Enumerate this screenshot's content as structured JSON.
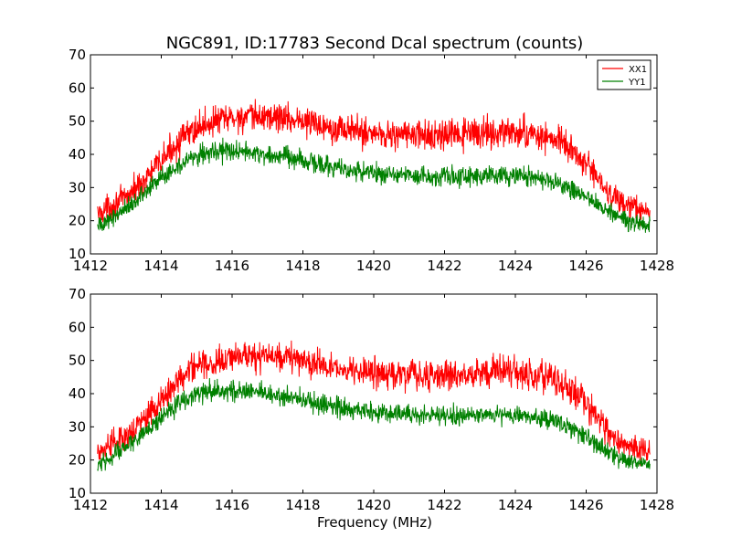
{
  "figure": {
    "title": "NGC891, ID:17783 Second Dcal spectrum (counts)",
    "xlabel": "Frequency (MHz)"
  },
  "chart_data": [
    {
      "type": "line",
      "title": "NGC891, ID:17783 Second Dcal spectrum (counts)",
      "xlabel": "",
      "ylabel": "",
      "xlim": [
        1412,
        1428
      ],
      "ylim": [
        10,
        70
      ],
      "xticks": [
        1412,
        1414,
        1416,
        1418,
        1420,
        1422,
        1424,
        1426,
        1428
      ],
      "yticks": [
        10,
        20,
        30,
        40,
        50,
        60,
        70
      ],
      "xtick_labels": [
        "1412",
        "1414",
        "1416",
        "1418",
        "1420",
        "1422",
        "1424",
        "1426",
        "1428"
      ],
      "ytick_labels": [
        "10",
        "20",
        "30",
        "40",
        "50",
        "60",
        "70"
      ],
      "grid": false,
      "legend": {
        "placement": "top-right",
        "entries": [
          "XX1",
          "YY1"
        ]
      },
      "series": [
        {
          "name": "XX1",
          "color": "#ff0000",
          "noise_amplitude": 3.5,
          "x": [
            1412.2,
            1412.5,
            1413.0,
            1413.5,
            1414.0,
            1414.5,
            1415.0,
            1415.5,
            1416.0,
            1416.5,
            1417.0,
            1417.5,
            1418.0,
            1418.5,
            1419.0,
            1419.5,
            1420.0,
            1420.5,
            1421.0,
            1421.5,
            1422.0,
            1422.5,
            1423.0,
            1423.5,
            1424.0,
            1424.5,
            1425.0,
            1425.5,
            1426.0,
            1426.5,
            1427.0,
            1427.5,
            1427.8
          ],
          "y": [
            22,
            24,
            27,
            32,
            38,
            44,
            48,
            50,
            51,
            51,
            51.5,
            51,
            50,
            49,
            48,
            47,
            46.5,
            46,
            46,
            45.5,
            45.5,
            46,
            46.5,
            46.5,
            46.5,
            46,
            45,
            42,
            37,
            30,
            25,
            23,
            22.5
          ]
        },
        {
          "name": "YY1",
          "color": "#008000",
          "noise_amplitude": 2.5,
          "x": [
            1412.2,
            1412.5,
            1413.0,
            1413.5,
            1414.0,
            1414.5,
            1415.0,
            1415.5,
            1416.0,
            1416.5,
            1417.0,
            1417.5,
            1418.0,
            1418.5,
            1419.0,
            1419.5,
            1420.0,
            1420.5,
            1421.0,
            1421.5,
            1422.0,
            1422.5,
            1423.0,
            1423.5,
            1424.0,
            1424.5,
            1425.0,
            1425.5,
            1426.0,
            1426.5,
            1427.0,
            1427.5,
            1427.8
          ],
          "y": [
            18,
            20,
            24,
            28,
            33,
            37,
            40,
            41,
            41,
            40.5,
            40,
            39,
            38,
            37,
            36,
            35,
            34.5,
            34,
            34,
            33.5,
            33.5,
            33.5,
            33.5,
            33.5,
            33.5,
            33,
            32,
            30,
            27,
            23.5,
            20.5,
            19,
            18.5
          ]
        }
      ]
    },
    {
      "type": "line",
      "title": "",
      "xlabel": "Frequency (MHz)",
      "ylabel": "",
      "xlim": [
        1412,
        1428
      ],
      "ylim": [
        10,
        70
      ],
      "xticks": [
        1412,
        1414,
        1416,
        1418,
        1420,
        1422,
        1424,
        1426,
        1428
      ],
      "yticks": [
        10,
        20,
        30,
        40,
        50,
        60,
        70
      ],
      "xtick_labels": [
        "1412",
        "1414",
        "1416",
        "1418",
        "1420",
        "1422",
        "1424",
        "1426",
        "1428"
      ],
      "ytick_labels": [
        "10",
        "20",
        "30",
        "40",
        "50",
        "60",
        "70"
      ],
      "grid": false,
      "legend": null,
      "series": [
        {
          "color": "#ff0000",
          "noise_amplitude": 3.5,
          "x": [
            1412.2,
            1412.5,
            1413.0,
            1413.5,
            1414.0,
            1414.5,
            1415.0,
            1415.5,
            1416.0,
            1416.5,
            1417.0,
            1417.5,
            1418.0,
            1418.5,
            1419.0,
            1419.5,
            1420.0,
            1420.5,
            1421.0,
            1421.5,
            1422.0,
            1422.5,
            1423.0,
            1423.5,
            1424.0,
            1424.5,
            1425.0,
            1425.5,
            1426.0,
            1426.5,
            1427.0,
            1427.5,
            1427.8
          ],
          "y": [
            22,
            24,
            27,
            32,
            38,
            44,
            48,
            50,
            51,
            51,
            51.5,
            51,
            50,
            49,
            48,
            47,
            46.5,
            46,
            46,
            45.5,
            45.5,
            46,
            46.5,
            46.5,
            46.5,
            46,
            45,
            42,
            37,
            30,
            25,
            23,
            22.5
          ]
        },
        {
          "color": "#008000",
          "noise_amplitude": 2.5,
          "x": [
            1412.2,
            1412.5,
            1413.0,
            1413.5,
            1414.0,
            1414.5,
            1415.0,
            1415.5,
            1416.0,
            1416.5,
            1417.0,
            1417.5,
            1418.0,
            1418.5,
            1419.0,
            1419.5,
            1420.0,
            1420.5,
            1421.0,
            1421.5,
            1422.0,
            1422.5,
            1423.0,
            1423.5,
            1424.0,
            1424.5,
            1425.0,
            1425.5,
            1426.0,
            1426.5,
            1427.0,
            1427.5,
            1427.8
          ],
          "y": [
            18,
            20,
            24,
            28,
            33,
            37,
            40,
            41,
            41,
            40.5,
            40,
            39,
            38,
            37,
            36,
            35,
            34.5,
            34,
            34,
            33.5,
            33.5,
            33.5,
            33.5,
            33.5,
            33.5,
            33,
            32,
            30,
            27,
            23.5,
            20.5,
            19,
            18.5
          ]
        }
      ]
    }
  ]
}
